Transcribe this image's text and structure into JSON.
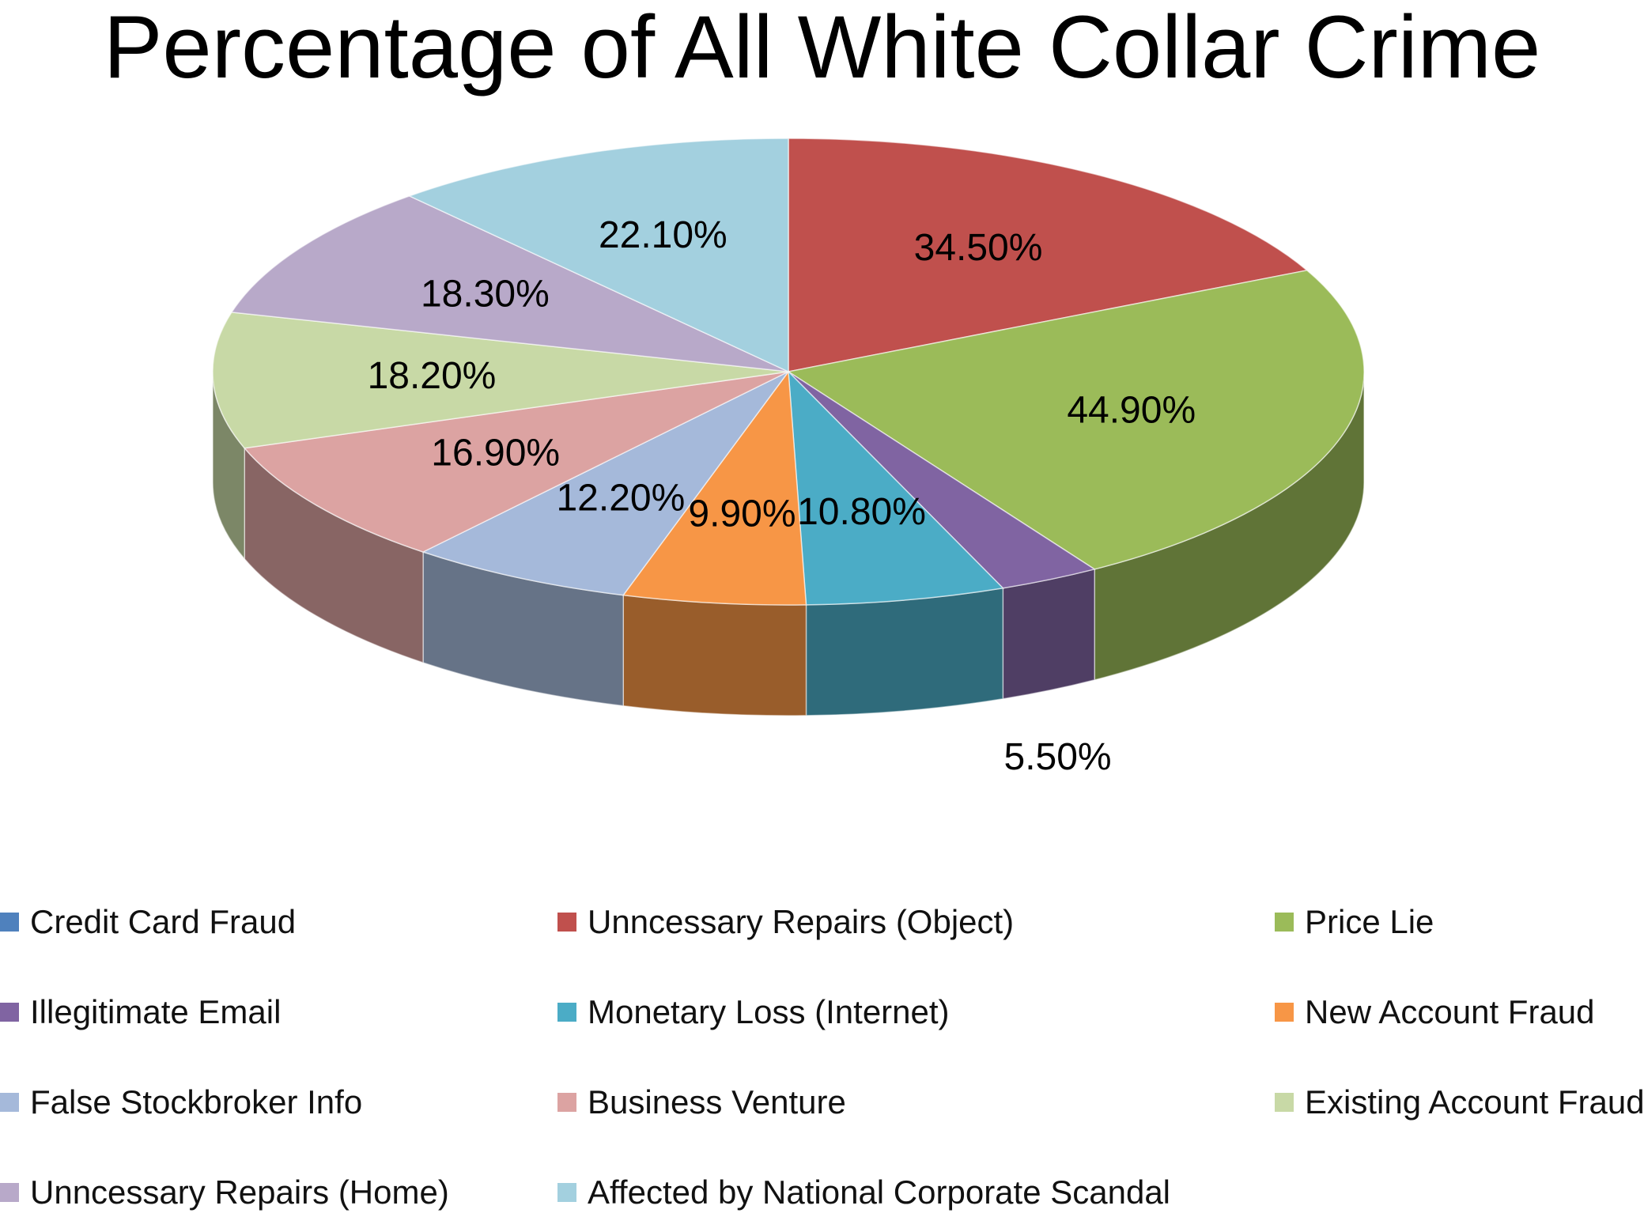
{
  "chart_data": {
    "type": "pie",
    "title": "Percentage of All White Collar Crime",
    "categories": [
      "Credit Card Fraud",
      "Unncessary Repairs (Object)",
      "Price Lie",
      "Illegitimate Email",
      "Monetary Loss (Internet)",
      "New Account Fraud",
      "False Stockbroker Info",
      "Business Venture",
      "Existing Account Fraud",
      "Unncessary Repairs (Home)",
      "Affected by National Corporate Scandal"
    ],
    "values": [
      null,
      34.5,
      44.9,
      5.5,
      10.8,
      9.9,
      12.2,
      16.9,
      18.2,
      18.3,
      22.1
    ],
    "data_labels": [
      null,
      "34.50%",
      "44.90%",
      "5.50%",
      "10.80%",
      "9.90%",
      "12.20%",
      "16.90%",
      "18.20%",
      "18.30%",
      "22.10%"
    ],
    "colors": [
      "#4F81BD",
      "#C0504D",
      "#9BBB59",
      "#8064A2",
      "#4BACC6",
      "#F79646",
      "#A5B9DA",
      "#DCA3A2",
      "#C8D9A6",
      "#B8A9C9",
      "#A3D0DF"
    ],
    "style": "3d-pie",
    "legend_position": "bottom"
  }
}
